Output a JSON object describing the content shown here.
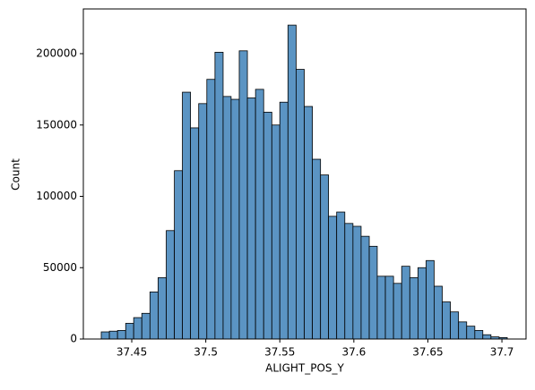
{
  "chart_data": {
    "type": "histogram",
    "xlabel": "ALIGHT_POS_Y",
    "ylabel": "Count",
    "bins": [
      37.4294,
      37.4349,
      37.4404,
      37.4459,
      37.4513,
      37.4568,
      37.4623,
      37.4678,
      37.4733,
      37.4788,
      37.4842,
      37.4897,
      37.4952,
      37.5007,
      37.5062,
      37.5117,
      37.5171,
      37.5226,
      37.5281,
      37.5336,
      37.5391,
      37.5446,
      37.55,
      37.5555,
      37.561,
      37.5665,
      37.572,
      37.5775,
      37.5829,
      37.5884,
      37.5939,
      37.5994,
      37.6049,
      37.6104,
      37.6158,
      37.6213,
      37.6268,
      37.6323,
      37.6378,
      37.6433,
      37.6488,
      37.6542,
      37.6597,
      37.6652,
      37.6707,
      37.6762,
      37.6817,
      37.6871,
      37.6926,
      37.6981,
      37.7036
    ],
    "values": [
      5000,
      5500,
      6000,
      11000,
      15000,
      18000,
      33000,
      43000,
      76000,
      118000,
      173000,
      148000,
      165000,
      182000,
      201000,
      170000,
      168000,
      202000,
      169000,
      175000,
      159000,
      150000,
      166000,
      220000,
      189000,
      163000,
      126000,
      115000,
      86000,
      89000,
      81000,
      79000,
      72000,
      65000,
      44000,
      44000,
      39000,
      51000,
      43000,
      50000,
      55000,
      37000,
      26000,
      19000,
      12000,
      9000,
      6000,
      3000,
      1500,
      1000
    ],
    "color": "#5b94c3",
    "xlim": [
      37.4173,
      37.7163
    ],
    "xticks": [
      37.45,
      37.5,
      37.55,
      37.6,
      37.65,
      37.7
    ],
    "ylim": [
      0,
      231350
    ],
    "yticks": [
      0,
      50000,
      100000,
      150000,
      200000
    ]
  }
}
